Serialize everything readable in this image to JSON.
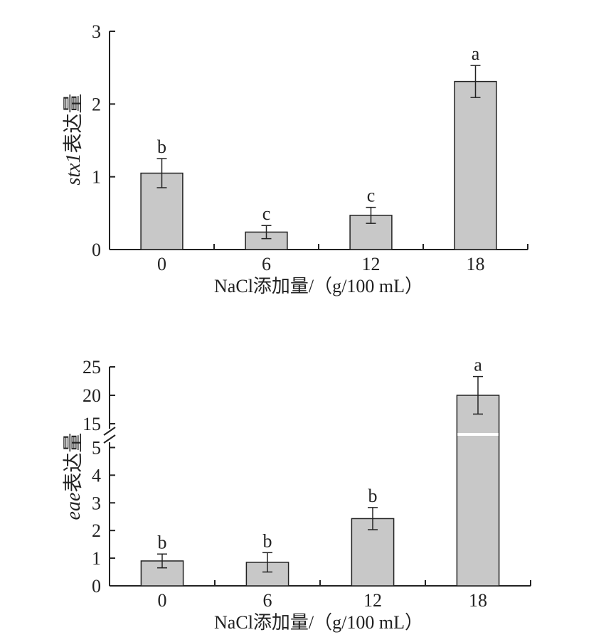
{
  "chart_data": [
    {
      "type": "bar",
      "categories": [
        "0",
        "6",
        "12",
        "18"
      ],
      "values": [
        1.05,
        0.24,
        0.47,
        2.31
      ],
      "errors": [
        0.2,
        0.09,
        0.11,
        0.22
      ],
      "significance": [
        "b",
        "c",
        "c",
        "a"
      ],
      "ylim": [
        0,
        3
      ],
      "yticks": [
        "0",
        "1",
        "2",
        "3"
      ],
      "xlabel": "NaCl添加量/（g/100 mL）",
      "ylabel_italic": "stx1",
      "ylabel_rest": "表达量",
      "bar_color": "#c8c8c8",
      "edge_color": "#222222"
    },
    {
      "type": "bar",
      "categories": [
        "0",
        "6",
        "12",
        "18"
      ],
      "values": [
        0.9,
        0.85,
        2.43,
        20
      ],
      "errors": [
        0.25,
        0.35,
        0.4,
        3.3
      ],
      "significance": [
        "b",
        "b",
        "b",
        "a"
      ],
      "axis_break": true,
      "ylim_lower": [
        0,
        5.5
      ],
      "ylim_upper": [
        13.5,
        25
      ],
      "yticks_lower": [
        "0",
        "1",
        "2",
        "3",
        "4",
        "5"
      ],
      "yticks_upper": [
        "15",
        "20",
        "25"
      ],
      "xlabel": "NaCl添加量/（g/100 mL）",
      "ylabel_italic": "eae",
      "ylabel_rest": "表达量",
      "bar_color": "#c8c8c8",
      "edge_color": "#222222"
    }
  ]
}
